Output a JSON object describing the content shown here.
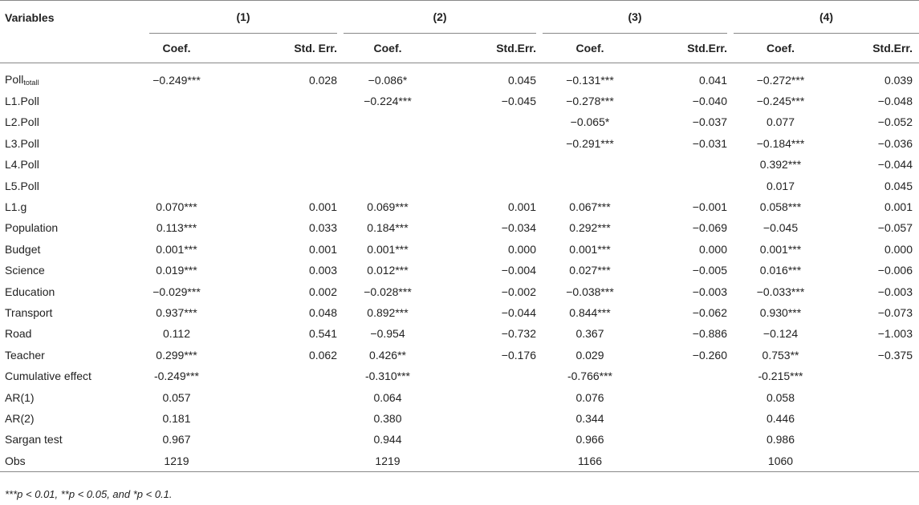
{
  "header": {
    "variables": "Variables",
    "models": [
      "(1)",
      "(2)",
      "(3)",
      "(4)"
    ],
    "coef": "Coef.",
    "se_labels": [
      "Std. Err.",
      "Std.Err.",
      "Std.Err.",
      "Std.Err."
    ]
  },
  "rows": [
    {
      "label": "Poll",
      "sub": "totall",
      "cells": [
        "−0.249***",
        "0.028",
        "−0.086*",
        "0.045",
        "−0.131***",
        "0.041",
        "−0.272***",
        "0.039"
      ]
    },
    {
      "label": "L1.Poll",
      "cells": [
        "",
        "",
        "−0.224***",
        "−0.045",
        "−0.278***",
        "−0.040",
        "−0.245***",
        "−0.048"
      ]
    },
    {
      "label": "L2.Poll",
      "cells": [
        "",
        "",
        "",
        "",
        "−0.065*",
        "−0.037",
        "0.077",
        "−0.052"
      ]
    },
    {
      "label": "L3.Poll",
      "cells": [
        "",
        "",
        "",
        "",
        "−0.291***",
        "−0.031",
        "−0.184***",
        "−0.036"
      ]
    },
    {
      "label": "L4.Poll",
      "cells": [
        "",
        "",
        "",
        "",
        "",
        "",
        "0.392***",
        "−0.044"
      ]
    },
    {
      "label": "L5.Poll",
      "cells": [
        "",
        "",
        "",
        "",
        "",
        "",
        "0.017",
        "0.045"
      ]
    },
    {
      "label": "L1.g",
      "cells": [
        "0.070***",
        "0.001",
        "0.069***",
        "0.001",
        "0.067***",
        "−0.001",
        "0.058***",
        "0.001"
      ]
    },
    {
      "label": "Population",
      "cells": [
        "0.113***",
        "0.033",
        "0.184***",
        "−0.034",
        "0.292***",
        "−0.069",
        "−0.045",
        "−0.057"
      ]
    },
    {
      "label": "Budget",
      "cells": [
        "0.001***",
        "0.001",
        "0.001***",
        "0.000",
        "0.001***",
        "0.000",
        "0.001***",
        "0.000"
      ]
    },
    {
      "label": "Science",
      "cells": [
        "0.019***",
        "0.003",
        "0.012***",
        "−0.004",
        "0.027***",
        "−0.005",
        "0.016***",
        "−0.006"
      ]
    },
    {
      "label": "Education",
      "cells": [
        "−0.029***",
        "0.002",
        "−0.028***",
        "−0.002",
        "−0.038***",
        "−0.003",
        "−0.033***",
        "−0.003"
      ]
    },
    {
      "label": "Transport",
      "cells": [
        "0.937***",
        "0.048",
        "0.892***",
        "−0.044",
        "0.844***",
        "−0.062",
        "0.930***",
        "−0.073"
      ]
    },
    {
      "label": "Road",
      "cells": [
        "0.112",
        "0.541",
        "−0.954",
        "−0.732",
        "0.367",
        "−0.886",
        "−0.124",
        "−1.003"
      ]
    },
    {
      "label": "Teacher",
      "cells": [
        "0.299***",
        "0.062",
        "0.426**",
        "−0.176",
        "0.029",
        "−0.260",
        "0.753**",
        "−0.375"
      ]
    },
    {
      "label": "Cumulative effect",
      "cells": [
        "-0.249***",
        "",
        "-0.310***",
        "",
        "-0.766***",
        "",
        "-0.215***",
        ""
      ]
    },
    {
      "label": "AR(1)",
      "cells": [
        "0.057",
        "",
        "0.064",
        "",
        "0.076",
        "",
        "0.058",
        ""
      ]
    },
    {
      "label": "AR(2)",
      "cells": [
        "0.181",
        "",
        "0.380",
        "",
        "0.344",
        "",
        "0.446",
        ""
      ]
    },
    {
      "label": "Sargan test",
      "cells": [
        "0.967",
        "",
        "0.944",
        "",
        "0.966",
        "",
        "0.986",
        ""
      ]
    },
    {
      "label": "Obs",
      "cells": [
        "1219",
        "",
        "1219",
        "",
        "1166",
        "",
        "1060",
        ""
      ]
    }
  ],
  "footnote": "***p < 0.01, **p < 0.05, and *p < 0.1."
}
